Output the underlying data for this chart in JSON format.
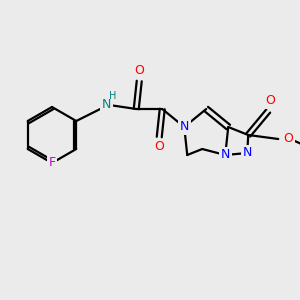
{
  "background_color": "#ebebeb",
  "atom_colors": {
    "C": "#000000",
    "N": "#0000ff",
    "O": "#ff0000",
    "F": "#cc00cc",
    "H_label": "#008080"
  },
  "bond_color": "#000000",
  "bond_width": 1.6,
  "figsize": [
    3.0,
    3.0
  ],
  "dpi": 100
}
